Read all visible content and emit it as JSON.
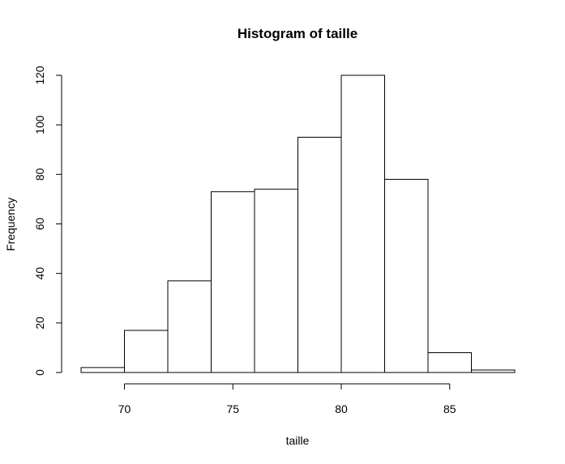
{
  "chart_data": {
    "type": "bar",
    "title": "Histogram of taille",
    "xlabel": "taille",
    "ylabel": "Frequency",
    "bins": [
      {
        "start": 68,
        "end": 70,
        "value": 2
      },
      {
        "start": 70,
        "end": 72,
        "value": 17
      },
      {
        "start": 72,
        "end": 74,
        "value": 37
      },
      {
        "start": 74,
        "end": 76,
        "value": 73
      },
      {
        "start": 76,
        "end": 78,
        "value": 74
      },
      {
        "start": 78,
        "end": 80,
        "value": 95
      },
      {
        "start": 80,
        "end": 82,
        "value": 120
      },
      {
        "start": 82,
        "end": 84,
        "value": 78
      },
      {
        "start": 84,
        "end": 86,
        "value": 8
      },
      {
        "start": 86,
        "end": 88,
        "value": 1
      }
    ],
    "xlim": [
      68,
      88
    ],
    "ylim": [
      0,
      120
    ],
    "xticks": [
      70,
      75,
      80,
      85
    ],
    "yticks": [
      0,
      20,
      40,
      60,
      80,
      100,
      120
    ],
    "grid": false,
    "colors": {
      "fill": "#ffffff",
      "stroke": "#000000"
    }
  }
}
